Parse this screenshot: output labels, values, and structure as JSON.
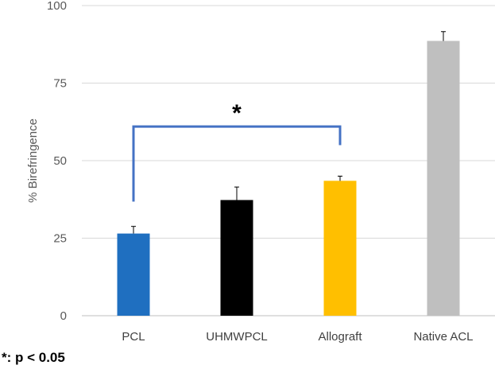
{
  "chart_data": {
    "type": "bar",
    "categories": [
      "PCL",
      "UHMWPCL",
      "Allograft",
      "Native ACL"
    ],
    "values": [
      26.5,
      37.3,
      43.5,
      88.6
    ],
    "errors": [
      2.3,
      4.2,
      1.5,
      3.0
    ],
    "colors": [
      "#1f6fc0",
      "#000000",
      "#ffbf00",
      "#bfbfbf"
    ],
    "ylabel": "% Birefringence",
    "xlabel": "",
    "ylim": [
      0,
      100
    ],
    "yticks": [
      0,
      25,
      50,
      75,
      100
    ],
    "grid": true,
    "significance": {
      "from": "PCL",
      "to": "Allograft",
      "symbol": "*",
      "color": "#4472c4"
    }
  },
  "footnote": "*: p < 0.05"
}
